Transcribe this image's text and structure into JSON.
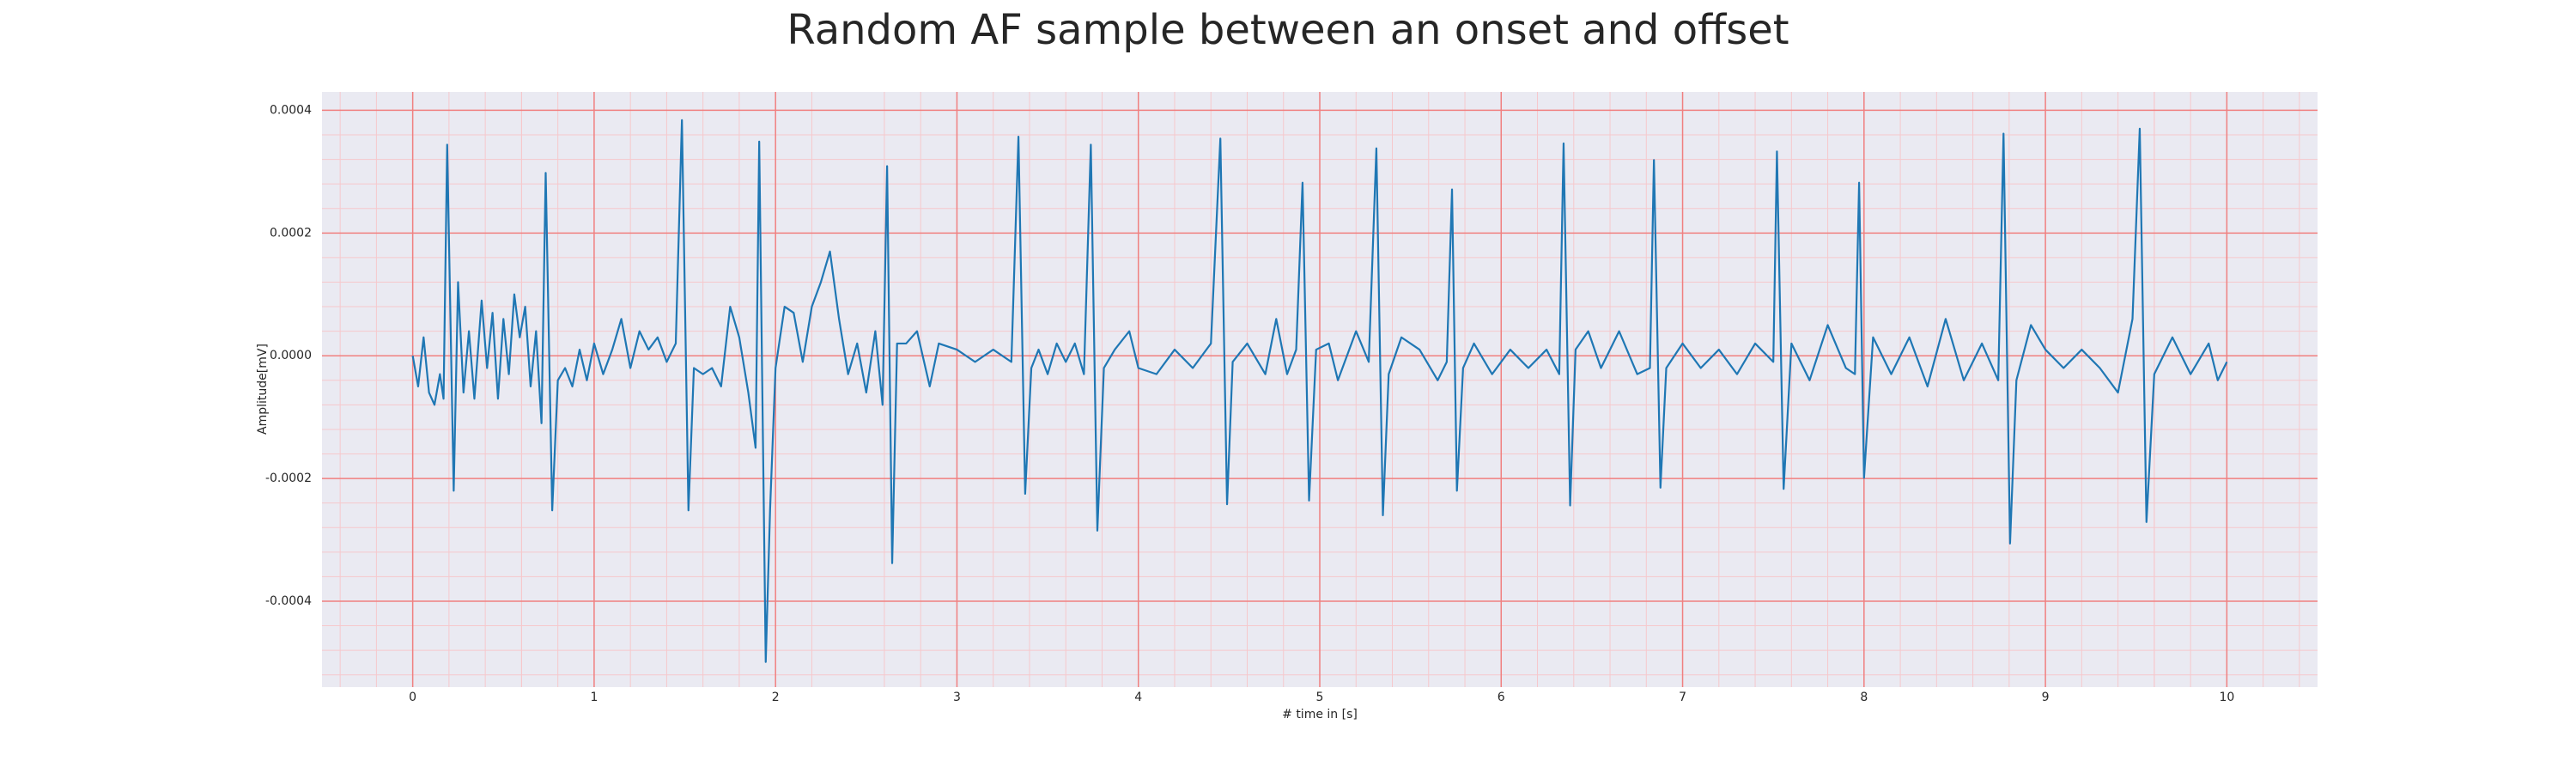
{
  "chart_data": {
    "type": "line",
    "title": "Random AF sample between an onset and offset",
    "xlabel": "# time in [s]",
    "ylabel": "Amplitude[mV]",
    "color": "#1f77b4",
    "background": "#eaeaf2",
    "grid": true,
    "grid_color": "#f08080",
    "minor_grid": true,
    "minor_grid_color": "#f6c8cc",
    "xlim": [
      -0.5,
      10.5
    ],
    "xticks": [
      0,
      1,
      2,
      3,
      4,
      5,
      6,
      7,
      8,
      9,
      10
    ],
    "ylim": [
      -0.00054,
      0.00043
    ],
    "yticks": [
      {
        "value": -0.0004,
        "label": "-0.0004"
      },
      {
        "value": -0.0002,
        "label": "-0.0002"
      },
      {
        "value": 0,
        "label": "0.0000"
      },
      {
        "value": 0.0002,
        "label": "0.0002"
      },
      {
        "value": 0.0004,
        "label": "0.0004"
      }
    ],
    "x": [
      0,
      0.03,
      0.06,
      0.09,
      0.12,
      0.15,
      0.17,
      0.19,
      0.226,
      0.25,
      0.28,
      0.31,
      0.34,
      0.38,
      0.41,
      0.44,
      0.47,
      0.5,
      0.53,
      0.56,
      0.59,
      0.62,
      0.65,
      0.68,
      0.71,
      0.733,
      0.769,
      0.8,
      0.84,
      0.88,
      0.92,
      0.96,
      1.0,
      1.05,
      1.1,
      1.15,
      1.2,
      1.25,
      1.3,
      1.35,
      1.4,
      1.45,
      1.484,
      1.52,
      1.55,
      1.6,
      1.65,
      1.7,
      1.75,
      1.8,
      1.85,
      1.89,
      1.91,
      1.946,
      1.97,
      2.0,
      2.05,
      2.1,
      2.15,
      2.2,
      2.25,
      2.3,
      2.35,
      2.4,
      2.45,
      2.5,
      2.55,
      2.59,
      2.615,
      2.643,
      2.67,
      2.72,
      2.78,
      2.85,
      2.9,
      3.0,
      3.1,
      3.2,
      3.3,
      3.339,
      3.376,
      3.41,
      3.45,
      3.5,
      3.55,
      3.6,
      3.65,
      3.7,
      3.738,
      3.774,
      3.81,
      3.87,
      3.95,
      4.0,
      4.1,
      4.2,
      4.3,
      4.4,
      4.452,
      4.489,
      4.52,
      4.6,
      4.7,
      4.76,
      4.82,
      4.87,
      4.905,
      4.941,
      4.98,
      5.05,
      5.1,
      5.2,
      5.27,
      5.312,
      5.348,
      5.38,
      5.45,
      5.55,
      5.65,
      5.7,
      5.729,
      5.756,
      5.79,
      5.85,
      5.95,
      6.05,
      6.15,
      6.25,
      6.32,
      6.344,
      6.38,
      6.41,
      6.48,
      6.55,
      6.65,
      6.75,
      6.82,
      6.842,
      6.878,
      6.91,
      7.0,
      7.1,
      7.2,
      7.3,
      7.4,
      7.5,
      7.52,
      7.557,
      7.6,
      7.7,
      7.8,
      7.9,
      7.95,
      7.973,
      8.0,
      8.05,
      8.15,
      8.25,
      8.35,
      8.45,
      8.55,
      8.65,
      8.74,
      8.769,
      8.805,
      8.84,
      8.92,
      9.0,
      9.1,
      9.2,
      9.3,
      9.4,
      9.48,
      9.52,
      9.557,
      9.6,
      9.7,
      9.8,
      9.9,
      9.95,
      10.0
    ],
    "values": [
      0,
      -5e-05,
      3e-05,
      -6e-05,
      -8e-05,
      -3e-05,
      -7e-05,
      0.000344,
      -0.00022,
      0.00012,
      -6e-05,
      4e-05,
      -7e-05,
      9e-05,
      -2e-05,
      7e-05,
      -7e-05,
      6e-05,
      -3e-05,
      0.0001,
      3e-05,
      8e-05,
      -5e-05,
      4e-05,
      -0.00011,
      0.000298,
      -0.000252,
      -4e-05,
      -2e-05,
      -5e-05,
      1e-05,
      -4e-05,
      2e-05,
      -3e-05,
      1e-05,
      6e-05,
      -2e-05,
      4e-05,
      1e-05,
      3e-05,
      -1e-05,
      2e-05,
      0.000384,
      -0.000252,
      -2e-05,
      -3e-05,
      -2e-05,
      -5e-05,
      8e-05,
      3e-05,
      -6e-05,
      -0.00015,
      0.000349,
      -0.000499,
      -0.00025,
      -2e-05,
      8e-05,
      7e-05,
      -1e-05,
      8e-05,
      0.00012,
      0.00017,
      6e-05,
      -3e-05,
      2e-05,
      -6e-05,
      4e-05,
      -8e-05,
      0.000309,
      -0.000338,
      2e-05,
      2e-05,
      4e-05,
      -5e-05,
      2e-05,
      1e-05,
      -1e-05,
      1e-05,
      -1e-05,
      0.000357,
      -0.000225,
      -2e-05,
      1e-05,
      -3e-05,
      2e-05,
      -1e-05,
      2e-05,
      -3e-05,
      0.000344,
      -0.000285,
      -2e-05,
      1e-05,
      4e-05,
      -2e-05,
      -3e-05,
      1e-05,
      -2e-05,
      2e-05,
      0.000354,
      -0.000242,
      -1e-05,
      2e-05,
      -3e-05,
      6e-05,
      -3e-05,
      1e-05,
      0.000282,
      -0.000236,
      1e-05,
      2e-05,
      -4e-05,
      4e-05,
      -1e-05,
      0.000338,
      -0.00026,
      -3e-05,
      3e-05,
      1e-05,
      -4e-05,
      -1e-05,
      0.000271,
      -0.00022,
      -2e-05,
      2e-05,
      -3e-05,
      1e-05,
      -2e-05,
      1e-05,
      -3e-05,
      0.000346,
      -0.000244,
      1e-05,
      4e-05,
      -2e-05,
      4e-05,
      -3e-05,
      -2e-05,
      0.000319,
      -0.000215,
      -2e-05,
      2e-05,
      -2e-05,
      1e-05,
      -3e-05,
      2e-05,
      -1e-05,
      0.000333,
      -0.000217,
      2e-05,
      -4e-05,
      5e-05,
      -2e-05,
      -3e-05,
      0.000282,
      -0.000199,
      3e-05,
      -3e-05,
      3e-05,
      -5e-05,
      6e-05,
      -4e-05,
      2e-05,
      -4e-05,
      0.000362,
      -0.000306,
      -4e-05,
      5e-05,
      1e-05,
      -2e-05,
      1e-05,
      -2e-05,
      -6e-05,
      6e-05,
      0.00037,
      -0.000271,
      -3e-05,
      3e-05,
      -3e-05,
      2e-05,
      -4e-05,
      -1e-05
    ]
  }
}
